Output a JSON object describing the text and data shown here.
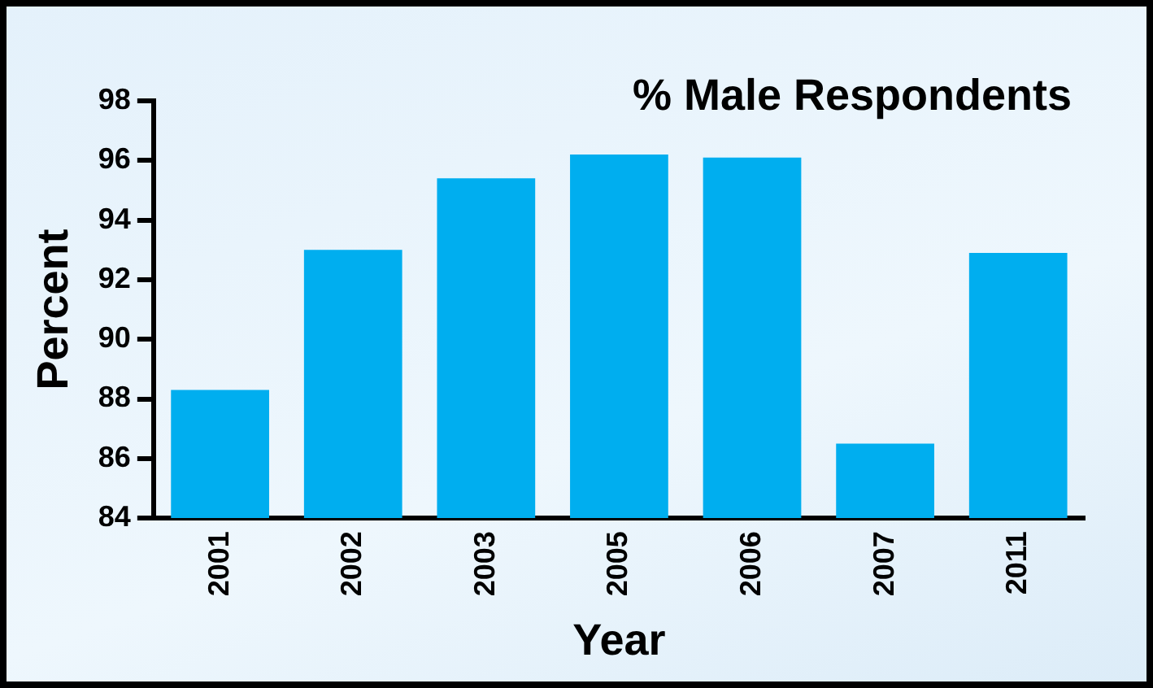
{
  "chart_data": {
    "type": "bar",
    "title": "% Male Respondents",
    "xlabel": "Year",
    "ylabel": "Percent",
    "categories": [
      "2001",
      "2002",
      "2003",
      "2005",
      "2006",
      "2007",
      "2011"
    ],
    "values": [
      88.3,
      93.0,
      95.4,
      96.2,
      96.1,
      86.5,
      92.9
    ],
    "color": "#00aeef",
    "ylim": [
      84,
      98
    ],
    "yticks": [
      84,
      86,
      88,
      90,
      92,
      94,
      96,
      98
    ],
    "grid": false,
    "legend": false
  }
}
